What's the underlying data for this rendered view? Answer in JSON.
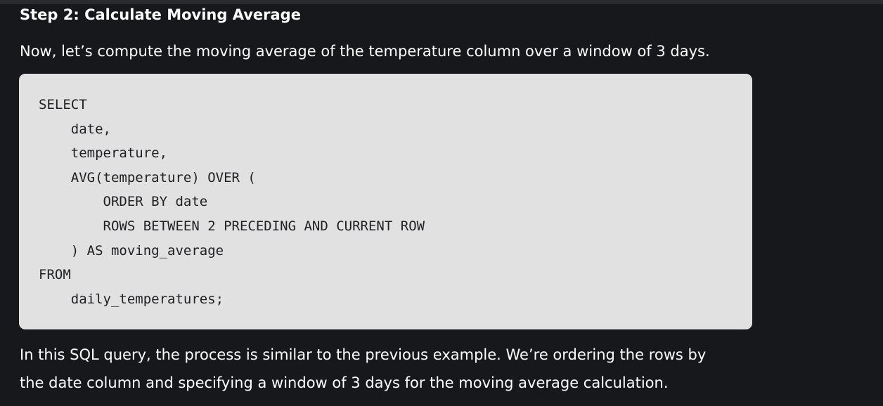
{
  "heading": "Step 2: Calculate Moving Average",
  "intro": "Now, let’s compute the moving average of the temperature column over a window of 3 days.",
  "code": {
    "language": "sql",
    "lines": [
      "SELECT",
      "    date,",
      "    temperature,",
      "    AVG(temperature) OVER (",
      "        ORDER BY date",
      "        ROWS BETWEEN 2 PRECEDING AND CURRENT ROW",
      "    ) AS moving_average",
      "FROM",
      "    daily_temperatures;"
    ]
  },
  "explanation": {
    "lines": [
      "In this SQL query, the process is similar to the previous example. We’re ordering the rows by",
      "the date column and specifying a window of 3 days for the moving average calculation."
    ]
  },
  "colors": {
    "page_background": "#17181c",
    "code_background": "#e1e1e1",
    "code_text": "#202124",
    "body_text": "#ffffff"
  }
}
